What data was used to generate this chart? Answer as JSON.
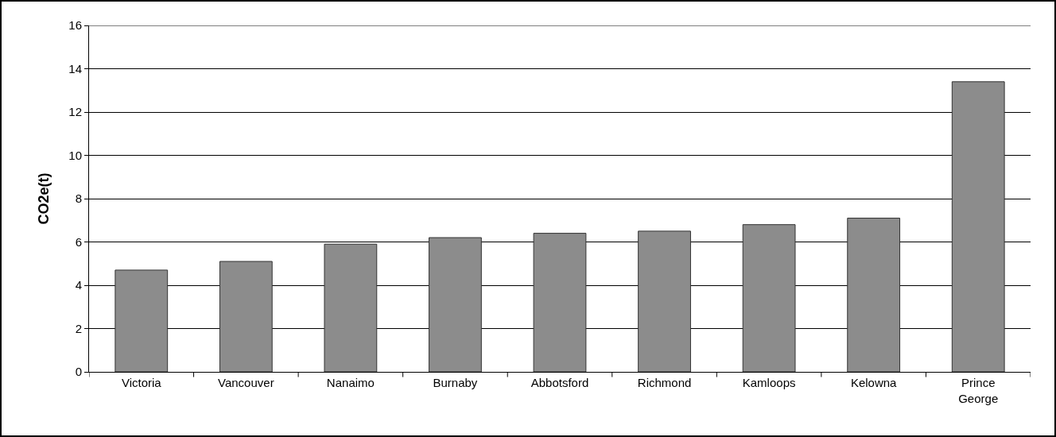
{
  "chart_data": {
    "type": "bar",
    "ylabel": "CO2e(t)",
    "categories": [
      "Victoria",
      "Vancouver",
      "Nanaimo",
      "Burnaby",
      "Abbotsford",
      "Richmond",
      "Kamloops",
      "Kelowna",
      "Prince George"
    ],
    "values": [
      4.7,
      5.1,
      5.9,
      6.2,
      6.4,
      6.5,
      6.8,
      7.1,
      13.4
    ],
    "color": "#8c8c8c",
    "ylim": [
      0,
      16
    ],
    "yticks": [
      0,
      2,
      4,
      6,
      8,
      10,
      12,
      14,
      16
    ],
    "grid": "y",
    "legend": false
  }
}
